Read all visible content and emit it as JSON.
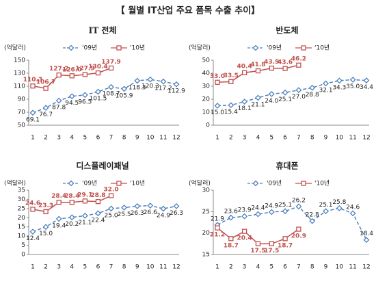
{
  "title": "【 월별 IT산업 주요 품목 수출 추이】",
  "chart_data": [
    {
      "type": "line",
      "title": "IT 전체",
      "y_label": "(억달러)",
      "categories": [
        "1",
        "2",
        "3",
        "4",
        "5",
        "6",
        "7",
        "8",
        "9",
        "10",
        "11",
        "12"
      ],
      "ylim": [
        50,
        150
      ],
      "yticks": [
        50,
        70,
        90,
        110,
        130,
        150
      ],
      "series": [
        {
          "name": "'09년",
          "color": "#4f81bd",
          "marker": "diamond",
          "dash": true,
          "values": [
            69.1,
            76.7,
            87.8,
            94.5,
            96.5,
            101.5,
            108.7,
            105.9,
            118.3,
            120.3,
            117.2,
            112.9
          ]
        },
        {
          "name": "'10년",
          "color": "#c0504d",
          "marker": "square",
          "dash": false,
          "values": [
            110.3,
            106.7,
            127.2,
            126.0,
            127.9,
            130.4,
            137.9,
            null,
            null,
            null,
            null,
            null
          ],
          "value_labels": [
            "110.3",
            "106.7",
            "127.2",
            "126.0",
            "127.9",
            "130.4",
            "137.9",
            null,
            null,
            null,
            null,
            null
          ]
        }
      ]
    },
    {
      "type": "line",
      "title": "반도체",
      "y_label": "(억달러)",
      "categories": [
        "1",
        "2",
        "3",
        "4",
        "5",
        "6",
        "7",
        "8",
        "9",
        "10",
        "11",
        "12"
      ],
      "ylim": [
        0,
        50
      ],
      "yticks": [
        0,
        10,
        20,
        30,
        40,
        50
      ],
      "series": [
        {
          "name": "'09년",
          "color": "#4f81bd",
          "marker": "diamond",
          "dash": true,
          "values": [
            15.0,
            15.4,
            18.1,
            21.1,
            24.0,
            25.1,
            27.0,
            28.8,
            32.1,
            34.3,
            35.0,
            34.4
          ],
          "value_labels": [
            "15.0",
            "15.4",
            "18.1",
            "21.1",
            "24.0",
            "25.1",
            "27.0",
            "28.8",
            "32.1",
            "34.3",
            "35.0",
            "34.4"
          ]
        },
        {
          "name": "'10년",
          "color": "#c0504d",
          "marker": "square",
          "dash": false,
          "values": [
            33.0,
            33.5,
            40.4,
            41.8,
            43.9,
            43.6,
            46.2,
            null,
            null,
            null,
            null,
            null
          ],
          "value_labels": [
            "33.0",
            "33.5",
            "40.4",
            "41.8",
            "43.9",
            "43.6",
            "46.2",
            null,
            null,
            null,
            null,
            null
          ]
        }
      ]
    },
    {
      "type": "line",
      "title": "디스플레이패널",
      "y_label": "(억달러)",
      "categories": [
        "1",
        "2",
        "3",
        "4",
        "5",
        "6",
        "7",
        "8",
        "9",
        "10",
        "11",
        "12"
      ],
      "ylim": [
        0,
        35
      ],
      "yticks": [
        0,
        5,
        10,
        15,
        20,
        25,
        30,
        35
      ],
      "series": [
        {
          "name": "'09년",
          "color": "#4f81bd",
          "marker": "diamond",
          "dash": true,
          "values": [
            12.4,
            15.0,
            19.4,
            20.2,
            21.1,
            22.4,
            25.0,
            25.5,
            26.3,
            26.6,
            24.9,
            26.3
          ],
          "value_labels": [
            "12.4",
            "15.0",
            "19.4",
            "20.2",
            "21.1",
            "22.4",
            "25.0",
            "25.5",
            "26.3",
            "26.6",
            "24.9",
            "26.3"
          ]
        },
        {
          "name": "'10년",
          "color": "#c0504d",
          "marker": "square",
          "dash": false,
          "values": [
            24.6,
            23.3,
            28.4,
            28.4,
            29.1,
            28.8,
            32.0,
            null,
            null,
            null,
            null,
            null
          ],
          "value_labels": [
            "24.6",
            "23.3",
            "28.4",
            "28.4",
            "29.1",
            "28.8",
            "32.0",
            null,
            null,
            null,
            null,
            null
          ]
        }
      ]
    },
    {
      "type": "line",
      "title": "휴대폰",
      "y_label": "(억달러)",
      "categories": [
        "1",
        "2",
        "3",
        "4",
        "5",
        "6",
        "7",
        "8",
        "9",
        "10",
        "11",
        "12"
      ],
      "ylim": [
        15,
        30
      ],
      "yticks": [
        15,
        20,
        25,
        30
      ],
      "series": [
        {
          "name": "'09년",
          "color": "#4f81bd",
          "marker": "diamond",
          "dash": true,
          "values": [
            21.9,
            23.6,
            23.9,
            24.4,
            24.9,
            25.1,
            26.2,
            22.8,
            25.1,
            25.8,
            24.6,
            18.4
          ]
        },
        {
          "name": "'10년",
          "color": "#c0504d",
          "marker": "square",
          "dash": false,
          "values": [
            21.2,
            18.7,
            20.4,
            17.5,
            17.5,
            18.7,
            20.9,
            null,
            null,
            null,
            null,
            null
          ]
        }
      ]
    }
  ]
}
